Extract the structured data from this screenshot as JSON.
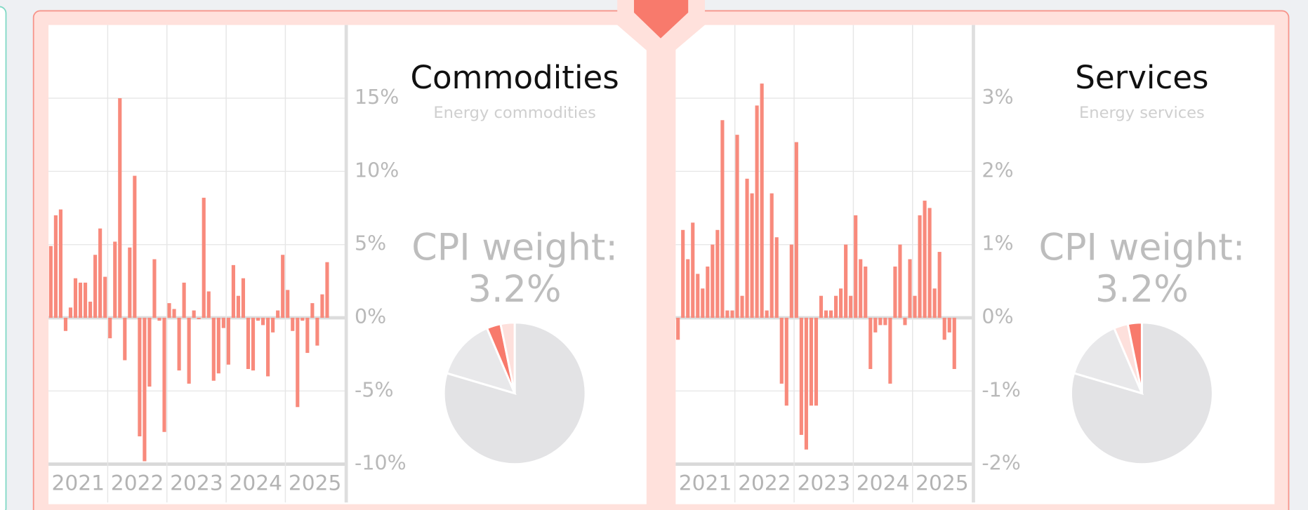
{
  "chart_data": [
    {
      "type": "bar",
      "title": "Commodities",
      "subtitle": "Energy commodities",
      "annotations": [
        "CPI weight:",
        "3.2%"
      ],
      "xtick_labels": [
        "2021",
        "2022",
        "2023",
        "2024",
        "2025"
      ],
      "values": [
        4.9,
        7.0,
        7.4,
        -0.9,
        0.7,
        2.7,
        2.4,
        2.4,
        1.1,
        4.3,
        6.1,
        2.8,
        -1.4,
        5.2,
        15.0,
        -2.9,
        4.8,
        9.7,
        -8.1,
        -9.8,
        -4.7,
        4.0,
        -0.2,
        -7.8,
        1.0,
        0.6,
        -3.6,
        2.4,
        -4.5,
        0.5,
        -0.1,
        8.2,
        1.8,
        -4.3,
        -3.8,
        -0.7,
        -3.2,
        3.6,
        1.5,
        2.7,
        -3.5,
        -3.6,
        -0.2,
        -0.5,
        -4.0,
        -1.0,
        0.5,
        4.3,
        1.9,
        -0.9,
        -6.1,
        -0.2,
        -2.4,
        1.0,
        -1.9,
        1.6,
        3.8
      ],
      "color": "#f88a7c",
      "ylim": [
        -10,
        20
      ],
      "yticks": [
        {
          "value": -10,
          "label": "-10%"
        },
        {
          "value": -5,
          "label": "-5%"
        },
        {
          "value": 0,
          "label": "0%"
        },
        {
          "value": 5,
          "label": "5%"
        },
        {
          "value": 10,
          "label": "10%"
        },
        {
          "value": 15,
          "label": "15%"
        }
      ],
      "grid": true,
      "pie": {
        "type": "pie",
        "values": [
          79.6,
          14,
          3.2,
          3.2
        ],
        "colors": [
          "#e3e3e5",
          "#e8e8ea",
          "#f87a6c",
          "#fde0dc"
        ]
      }
    },
    {
      "type": "bar",
      "title": "Services",
      "subtitle": "Energy services",
      "annotations": [
        "CPI weight:",
        "3.2%"
      ],
      "xtick_labels": [
        "2021",
        "2022",
        "2023",
        "2024",
        "2025"
      ],
      "values": [
        -0.3,
        1.2,
        0.8,
        1.3,
        0.6,
        0.4,
        0.7,
        1.0,
        1.2,
        2.7,
        0.1,
        0.1,
        2.5,
        0.3,
        1.9,
        1.7,
        2.9,
        3.2,
        0.1,
        1.7,
        1.1,
        -0.9,
        -1.2,
        1.0,
        2.4,
        -1.6,
        -1.8,
        -1.2,
        -1.2,
        0.3,
        0.1,
        0.1,
        0.3,
        0.4,
        1.0,
        0.3,
        1.4,
        0.8,
        0.7,
        -0.7,
        -0.2,
        -0.1,
        -0.1,
        -0.9,
        0.7,
        1.0,
        -0.1,
        0.8,
        0.3,
        1.4,
        1.6,
        1.5,
        0.4,
        0.9,
        -0.3,
        -0.2,
        -0.7
      ],
      "color": "#f88a7c",
      "ylim": [
        -2,
        4
      ],
      "yticks": [
        {
          "value": -2,
          "label": "-2%"
        },
        {
          "value": -1,
          "label": "-1%"
        },
        {
          "value": 0,
          "label": "0%"
        },
        {
          "value": 1,
          "label": "1%"
        },
        {
          "value": 2,
          "label": "2%"
        },
        {
          "value": 3,
          "label": "3%"
        }
      ],
      "grid": true,
      "pie": {
        "type": "pie",
        "values": [
          79.6,
          14,
          3.2,
          3.2
        ],
        "colors": [
          "#e3e3e5",
          "#e8e8ea",
          "#fde0dc",
          "#f87a6c"
        ]
      }
    }
  ]
}
